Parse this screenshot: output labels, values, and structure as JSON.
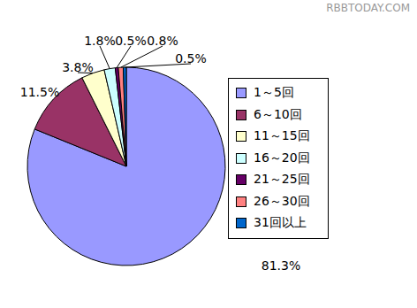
{
  "chart_data": {
    "type": "pie",
    "categories": [
      "1～5回",
      "6～10回",
      "11～15回",
      "16～20回",
      "21～25回",
      "26～30回",
      "31回以上"
    ],
    "values": [
      81.3,
      11.5,
      3.8,
      1.8,
      0.5,
      0.8,
      0.5
    ],
    "value_labels": [
      "81.3%",
      "11.5%",
      "3.8%",
      "1.8%",
      "0.5%",
      "0.8%",
      "0.5%"
    ],
    "colors": [
      "#9999ff",
      "#993366",
      "#ffffcc",
      "#ccffff",
      "#660066",
      "#ff8080",
      "#0066cc"
    ],
    "data_labels": true,
    "legend": "right",
    "annotations": [
      "RBBTODAY.COM"
    ]
  }
}
